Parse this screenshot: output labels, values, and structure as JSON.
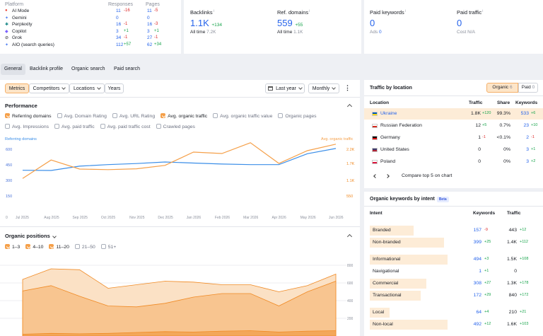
{
  "ai": {
    "h_platform": "Platform",
    "h_resp": "Responses",
    "h_pages": "Pages",
    "rows": [
      {
        "icon": "google-ai-icon",
        "glyph": "●",
        "color": "#ea4335",
        "name": "AI Mode",
        "r": "11",
        "rd": "-16",
        "rc": "r",
        "p": "11",
        "pd": "-5",
        "pc": "r"
      },
      {
        "icon": "gemini-icon",
        "glyph": "✦",
        "color": "#4e7ef2",
        "name": "Gemini",
        "r": "0",
        "rd": "",
        "rc": "",
        "p": "0",
        "pd": "",
        "pc": ""
      },
      {
        "icon": "perplexity-icon",
        "glyph": "✱",
        "color": "#1f8a8a",
        "name": "Perplexity",
        "r": "16",
        "rd": "-1",
        "rc": "r",
        "p": "16",
        "pd": "-3",
        "pc": "r"
      },
      {
        "icon": "copilot-icon",
        "glyph": "◆",
        "color": "#7b61ff",
        "name": "Copilot",
        "r": "3",
        "rd": "+1",
        "rc": "g",
        "p": "3",
        "pd": "+1",
        "pc": "g"
      },
      {
        "icon": "grok-icon",
        "glyph": "⊘",
        "color": "#222222",
        "name": "Grok",
        "r": "34",
        "rd": "-1",
        "rc": "r",
        "p": "27",
        "pd": "-1",
        "pc": "r"
      },
      {
        "icon": "aio-icon",
        "glyph": "✦",
        "color": "#4e7ef2",
        "name": "AIO (search queries)",
        "r": "112",
        "rd": "+57",
        "rc": "g",
        "p": "62",
        "pd": "+34",
        "pc": "g"
      }
    ]
  },
  "backlinks": {
    "label": "Backlinks",
    "value": "1.1K",
    "delta": "+134",
    "sub": "All time",
    "subv": "7.2K"
  },
  "refdomains": {
    "label": "Ref. domains",
    "value": "559",
    "delta": "+55",
    "sub": "All time",
    "subv": "1.1K"
  },
  "paidkw": {
    "label": "Paid keywords",
    "value": "0",
    "sub": "Ads",
    "subv": "0"
  },
  "paidtraffic": {
    "label": "Paid traffic",
    "value": "0",
    "sub": "Cost N/A"
  },
  "tabs": [
    "General",
    "Backlink profile",
    "Organic search",
    "Paid search"
  ],
  "toolbar": {
    "metrics": "Metrics",
    "competitors": "Competitors",
    "locations": "Locations",
    "years": "Years",
    "period": "Last year",
    "interval": "Monthly",
    "more": "⋮"
  },
  "perf": {
    "title": "Performance",
    "checks": [
      {
        "label": "Referring domains",
        "on": true
      },
      {
        "label": "Avg. Domain Rating",
        "on": false
      },
      {
        "label": "Avg. URL Rating",
        "on": false
      },
      {
        "label": "Avg. organic traffic",
        "on": true
      },
      {
        "label": "Avg. organic traffic value",
        "on": false
      },
      {
        "label": "Organic pages",
        "on": false
      }
    ],
    "checks2": [
      {
        "label": "Avg. Impressions",
        "on": false
      },
      {
        "label": "Avg. paid traffic",
        "on": false
      },
      {
        "label": "Avg. paid traffic cost",
        "on": false
      },
      {
        "label": "Crawled pages",
        "on": false
      }
    ],
    "legend_left": "Referring domains",
    "legend_right": "Avg. organic traffic",
    "yl": [
      "600",
      "450",
      "300",
      "150"
    ],
    "yr": [
      "2.2K",
      "1.7K",
      "1.1K",
      "550"
    ]
  },
  "chart_data": [
    {
      "type": "line",
      "x": [
        "Jul 2025",
        "Aug 2025",
        "Sep 2025",
        "Oct 2025",
        "Nov 2025",
        "Dec 2025",
        "Jan 2026",
        "Feb 2026",
        "Mar 2026",
        "Apr 2026",
        "May 2026",
        "Jun 2026"
      ],
      "series": [
        {
          "name": "Referring domains",
          "axis": "left",
          "color": "#3b8ee8",
          "values": [
            370,
            368,
            410,
            425,
            435,
            450,
            440,
            430,
            425,
            425,
            530,
            580
          ]
        },
        {
          "name": "Avg. organic traffic",
          "axis": "right",
          "color": "#f5a04a",
          "values": [
            1070,
            1720,
            1400,
            1380,
            1410,
            1530,
            2000,
            1950,
            2330,
            1600,
            2050,
            2280
          ]
        }
      ],
      "ylim_left": [
        0,
        600
      ],
      "ylim_right": [
        0,
        2200
      ],
      "grid": false
    },
    {
      "type": "area",
      "x": [
        "Jul 2025",
        "Aug 2025",
        "Sep 2025",
        "Oct 2025",
        "Nov 2025",
        "Dec 2025",
        "Jan 2026",
        "Feb 2026",
        "Mar 2026",
        "Apr 2026",
        "May 2026",
        "Jun 2026"
      ],
      "series": [
        {
          "name": "1-3",
          "values": [
            20,
            30,
            25,
            30,
            40,
            50,
            45,
            55,
            60,
            45,
            55,
            60
          ]
        },
        {
          "name": "4-10",
          "values": [
            510,
            570,
            450,
            340,
            330,
            370,
            440,
            480,
            480,
            340,
            500,
            620
          ]
        },
        {
          "name": "11-20",
          "values": [
            640,
            760,
            750,
            540,
            580,
            620,
            610,
            580,
            580,
            500,
            570,
            700
          ]
        }
      ],
      "ylim": [
        0,
        800
      ],
      "grid": true
    }
  ],
  "pos": {
    "title": "Organic positions",
    "checks": [
      {
        "label": "1–3",
        "on": true
      },
      {
        "label": "4–10",
        "on": true
      },
      {
        "label": "11–20",
        "on": true
      },
      {
        "label": "21–50",
        "on": false
      },
      {
        "label": "51+",
        "on": false
      }
    ],
    "yl": [
      "800",
      "600",
      "400",
      "200"
    ]
  },
  "xlabels": [
    "Jul 2025",
    "Aug 2025",
    "Sep 2025",
    "Oct 2025",
    "Nov 2025",
    "Dec 2025",
    "Jan 2026",
    "Feb 2026",
    "Mar 2026",
    "Apr 2026",
    "May 2026",
    "Jun 2026"
  ],
  "loc": {
    "title": "Traffic by location",
    "organic": "Organic",
    "organic_n": "6",
    "paid": "Paid",
    "paid_n": "0",
    "h": [
      "Location",
      "Traffic",
      "Share",
      "Keywords"
    ],
    "rows": [
      {
        "flag": [
          "#0057b7",
          "#ffd700"
        ],
        "name": "Ukraine",
        "t": "1.8K",
        "td": "+120",
        "tc": "g",
        "s": "99.3%",
        "k": "533",
        "kd": "+6",
        "kc": "g",
        "hl": true
      },
      {
        "flag": [
          "#ffffff",
          "#d52b1e"
        ],
        "name": "Russian Federation",
        "t": "12",
        "td": "+5",
        "tc": "g",
        "s": "0.7%",
        "k": "23",
        "kd": "+10",
        "kc": "g",
        "hl": false
      },
      {
        "flag": [
          "#000000",
          "#dd0000"
        ],
        "name": "Germany",
        "t": "1",
        "td": "-1",
        "tc": "r",
        "s": "<0.1%",
        "k": "2",
        "kd": "-1",
        "kc": "r",
        "hl": false
      },
      {
        "flag": [
          "#3c3b6e",
          "#b22234"
        ],
        "name": "United States",
        "t": "0",
        "td": "",
        "tc": "",
        "s": "0%",
        "k": "3",
        "kd": "+1",
        "kc": "g",
        "hl": false
      },
      {
        "flag": [
          "#ffffff",
          "#dc143c"
        ],
        "name": "Poland",
        "t": "0",
        "td": "",
        "tc": "",
        "s": "0%",
        "k": "3",
        "kd": "+2",
        "kc": "g",
        "hl": false
      }
    ],
    "compare": "Compare top 5 on chart"
  },
  "intent": {
    "title": "Organic keywords by intent",
    "beta": "Beta",
    "h": [
      "Intent",
      "Keywords",
      "Traffic"
    ],
    "groups": [
      [
        {
          "name": "Branded",
          "k": "157",
          "kd": "-9",
          "kc": "r",
          "t": "443",
          "td": "+12",
          "tc": "g",
          "w": 62
        },
        {
          "name": "Non-branded",
          "k": "399",
          "kd": "+25",
          "kc": "g",
          "t": "1.4K",
          "td": "+112",
          "tc": "g",
          "w": 105
        }
      ],
      [
        {
          "name": "Informational",
          "k": "494",
          "kd": "+3",
          "kc": "g",
          "t": "1.5K",
          "td": "+108",
          "tc": "g",
          "w": 110
        },
        {
          "name": "Navigational",
          "k": "1",
          "kd": "+1",
          "kc": "g",
          "t": "0",
          "td": "",
          "tc": "",
          "w": 0
        },
        {
          "name": "Commercial",
          "k": "308",
          "kd": "+27",
          "kc": "g",
          "t": "1.3K",
          "td": "+178",
          "tc": "g",
          "w": 80
        },
        {
          "name": "Transactional",
          "k": "172",
          "kd": "+29",
          "kc": "g",
          "t": "840",
          "td": "+172",
          "tc": "g",
          "w": 72
        }
      ],
      [
        {
          "name": "Local",
          "k": "64",
          "kd": "+4",
          "kc": "g",
          "t": "210",
          "td": "+21",
          "tc": "g",
          "w": 28
        },
        {
          "name": "Non-local",
          "k": "492",
          "kd": "+12",
          "kc": "g",
          "t": "1.6K",
          "td": "+103",
          "tc": "g",
          "w": 110
        }
      ]
    ]
  }
}
